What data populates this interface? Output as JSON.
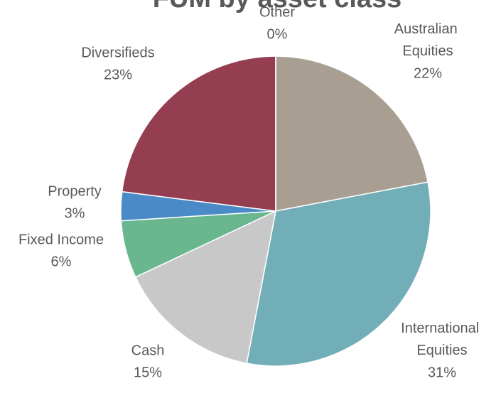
{
  "chart_data": {
    "type": "pie",
    "title": "FUM by asset class",
    "categories": [
      "Australian Equities",
      "International Equities",
      "Cash",
      "Fixed Income",
      "Property",
      "Diversifieds",
      "Other"
    ],
    "values": [
      22,
      31,
      15,
      6,
      3,
      23,
      0
    ],
    "value_labels": [
      "22%",
      "31%",
      "15%",
      "6%",
      "3%",
      "23%",
      "0%"
    ],
    "colors": [
      "#a99e92",
      "#72aeb8",
      "#c8c8c8",
      "#6ab78f",
      "#4a8ac6",
      "#953e52",
      "#7f7f7f"
    ]
  }
}
